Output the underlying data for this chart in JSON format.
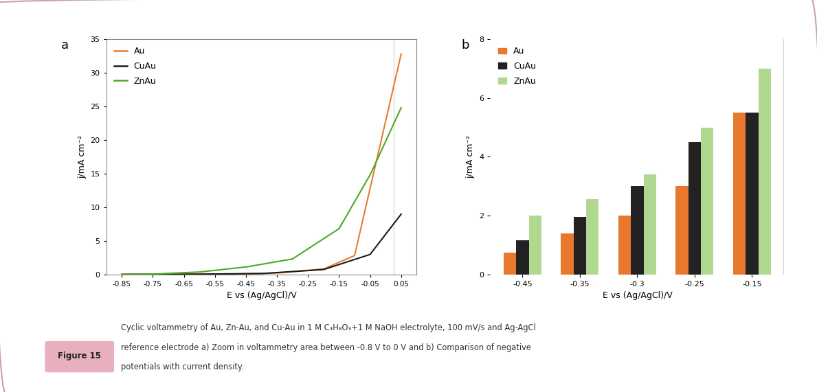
{
  "background_color": "#ffffff",
  "border_color": "#c9a0b0",
  "panel_a_label": "a",
  "panel_b_label": "b",
  "line_colors": {
    "Au": "#e87a30",
    "CuAu": "#1a1a1a",
    "ZnAu": "#4aaa20"
  },
  "bar_colors": {
    "Au": "#e8782e",
    "CuAu": "#222222",
    "ZnAu": "#b0d890"
  },
  "line_ylabel": "j/mA cm⁻²",
  "line_xlabel": "E vs (Ag/AgCl)/V",
  "bar_ylabel": "j/mA cm⁻²",
  "bar_xlabel": "E vs (Ag/AgCl)/V",
  "line_xlim": [
    -0.9,
    0.1
  ],
  "line_ylim": [
    0,
    35
  ],
  "line_xticks": [
    -0.85,
    -0.75,
    -0.65,
    -0.55,
    -0.45,
    -0.35,
    -0.25,
    -0.15,
    -0.05,
    0.05
  ],
  "line_yticks": [
    0,
    5,
    10,
    15,
    20,
    25,
    30,
    35
  ],
  "bar_categories": [
    "-0.45",
    "-0.35",
    "-0.3",
    "-0.25",
    "-0.15"
  ],
  "bar_ylim": [
    0,
    8
  ],
  "bar_yticks": [
    0,
    2,
    4,
    6,
    8
  ],
  "bar_data": {
    "Au": [
      0.75,
      1.4,
      2.0,
      3.0,
      5.5
    ],
    "CuAu": [
      1.15,
      1.95,
      3.0,
      4.5,
      5.5
    ],
    "ZnAu": [
      2.0,
      2.55,
      3.4,
      5.0,
      7.0
    ]
  },
  "figure_caption_line1": "Cyclic voltammetry of Au, Zn-Au, and Cu-Au in 1 M C₃H₈O₃+1 M NaOH electrolyte, 100 mV/s and Ag-AgCl",
  "figure_caption_line2": "reference electrode a) Zoom in voltammetry area between -0.8 V to 0 V and b) Comparison of negative",
  "figure_caption_line3": "potentials with current density.",
  "figure_label": "Figure 15",
  "figure_label_bg": "#e8b0be"
}
